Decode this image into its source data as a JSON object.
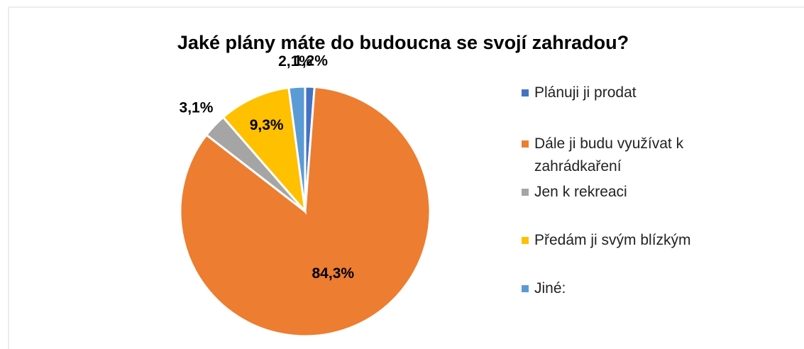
{
  "chart_data": {
    "type": "pie",
    "title": "Jaké plány máte do budoucna se svojí zahradou?",
    "categories": [
      "Plánuji ji prodat",
      "Dále ji budu využívat k zahrádkaření",
      "Jen k rekreaci",
      "Předám ji svým blízkým",
      "Jiné:"
    ],
    "values": [
      1.2,
      84.3,
      3.1,
      9.3,
      2.1
    ],
    "value_labels": [
      "1,2%",
      "84,3%",
      "3,1%",
      "9,3%",
      "2,1%"
    ],
    "colors": [
      "#4472c4",
      "#ed7d31",
      "#a5a5a5",
      "#ffc000",
      "#5b9bd5"
    ],
    "legend": "right"
  }
}
